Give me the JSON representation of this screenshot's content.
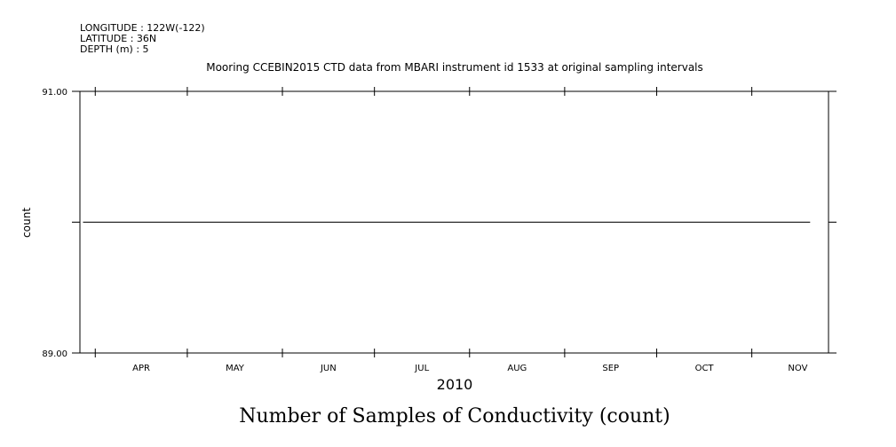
{
  "header": {
    "longitude": "LONGITUDE : 122W(-122)",
    "latitude": "LATITUDE : 36N",
    "depth": "DEPTH (m) : 5"
  },
  "chart_data": {
    "type": "line",
    "title": "Mooring CCEBIN2015 CTD data from MBARI instrument id 1533 at original sampling intervals",
    "xlabel": "2010",
    "ylabel": "count",
    "bottom_title": "Number of Samples of Conductivity (count)",
    "ylim": [
      89.0,
      91.0
    ],
    "ytick_labels": [
      "91.00",
      "89.00"
    ],
    "ytick_values": [
      91.0,
      90.0,
      89.0
    ],
    "x_range": [
      "2010-03-27",
      "2010-11-26"
    ],
    "month_labels": [
      "APR",
      "MAY",
      "JUN",
      "JUL",
      "AUG",
      "SEP",
      "OCT",
      "NOV"
    ],
    "month_starts": [
      "2010-04-01",
      "2010-05-01",
      "2010-06-01",
      "2010-07-01",
      "2010-08-01",
      "2010-09-01",
      "2010-10-01",
      "2010-11-01"
    ],
    "series": [
      {
        "x": [
          "2010-03-28",
          "2010-11-20"
        ],
        "values": [
          90.0,
          90.0
        ]
      }
    ],
    "grid": false,
    "line_color": "#000000"
  }
}
